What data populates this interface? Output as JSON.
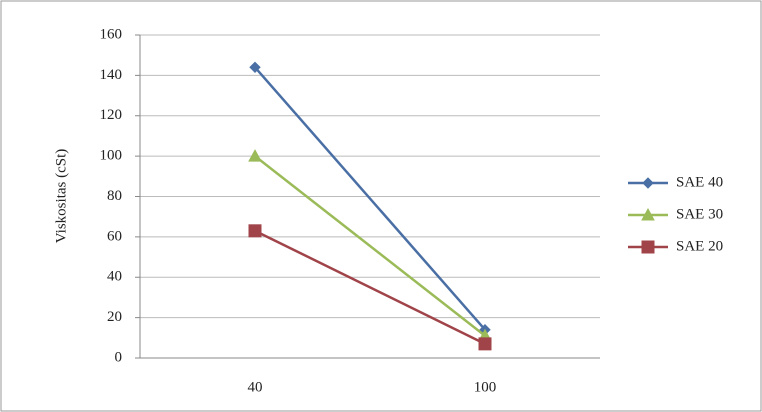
{
  "chart_data": {
    "type": "line",
    "y_label": "Viskositas (cSt)",
    "categories": [
      "40",
      "100"
    ],
    "series": [
      {
        "name": "SAE 40",
        "color": "#4a6fa5",
        "marker": "diamond",
        "values": [
          144,
          14
        ]
      },
      {
        "name": "SAE 30",
        "color": "#9bbb59",
        "marker": "triangle",
        "values": [
          100,
          11
        ]
      },
      {
        "name": "SAE 20",
        "color": "#a0444a",
        "marker": "square",
        "values": [
          63,
          7
        ]
      }
    ],
    "ylim": [
      0,
      160
    ],
    "yticks": [
      0,
      20,
      40,
      60,
      80,
      100,
      120,
      140,
      160
    ],
    "grid": true,
    "legend": "right"
  }
}
